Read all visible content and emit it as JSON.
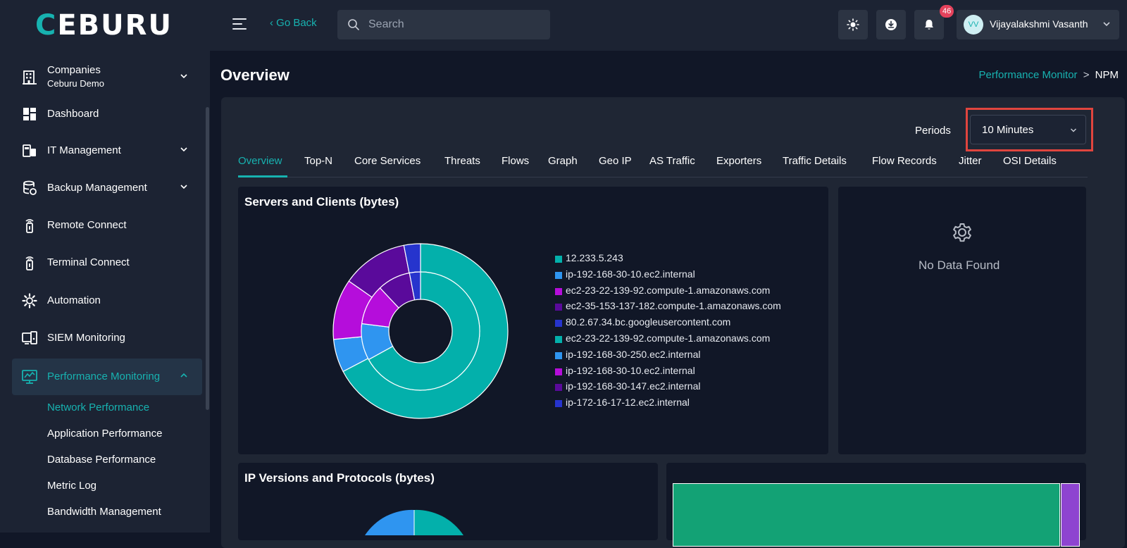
{
  "app": {
    "logo_first": "C",
    "logo_rest": "EBURU"
  },
  "topbar": {
    "go_back": "‹ Go Back",
    "search_placeholder": "Search",
    "notifications_count": "46",
    "user_initials": "VV",
    "user_name": "Vijayalakshmi Vasanth"
  },
  "sidebar": {
    "companies_label": "Companies",
    "companies_sub": "Ceburu Demo",
    "items": [
      {
        "label": "Dashboard"
      },
      {
        "label": "IT Management"
      },
      {
        "label": "Backup Management"
      },
      {
        "label": "Remote Connect"
      },
      {
        "label": "Terminal Connect"
      },
      {
        "label": "Automation"
      },
      {
        "label": "SIEM Monitoring"
      },
      {
        "label": "Performance Monitoring"
      }
    ],
    "sub_items": [
      {
        "label": "Network Performance"
      },
      {
        "label": "Application Performance"
      },
      {
        "label": "Database Performance"
      },
      {
        "label": "Metric Log"
      },
      {
        "label": "Bandwidth Management"
      }
    ]
  },
  "header": {
    "title": "Overview",
    "breadcrumb_link": "Performance Monitor",
    "breadcrumb_sep": ">",
    "breadcrumb_current": "NPM"
  },
  "filters": {
    "periods_label": "Periods",
    "period_value": "10 Minutes"
  },
  "tabs": [
    {
      "label": "Overview"
    },
    {
      "label": "Top-N"
    },
    {
      "label": "Core Services"
    },
    {
      "label": "Threats"
    },
    {
      "label": "Flows"
    },
    {
      "label": "Graph"
    },
    {
      "label": "Geo IP"
    },
    {
      "label": "AS Traffic"
    },
    {
      "label": "Exporters"
    },
    {
      "label": "Traffic Details"
    },
    {
      "label": "Flow Records"
    },
    {
      "label": "Jitter"
    },
    {
      "label": "OSI Details"
    }
  ],
  "cards": {
    "servers_clients_title": "Servers and Clients (bytes)",
    "no_data_text": "No Data Found",
    "ip_versions_title": "IP Versions and Protocols (bytes)"
  },
  "colors": {
    "accent": "#17b2b0",
    "teal": "#03b0ab",
    "blue": "#2f95f0",
    "magenta": "#b50ddb",
    "purple": "#5a0a9b",
    "indigo": "#2634cd",
    "treemap_green": "#13a275",
    "treemap_purple": "#8e44d0"
  },
  "chart_data": {
    "type": "pie",
    "title": "Servers and Clients (bytes)",
    "legend_position": "right",
    "rings": [
      {
        "name": "outer",
        "labels": [
          "12.233.5.243",
          "ip-192-168-30-10.ec2.internal",
          "ec2-23-22-139-92.compute-1.amazonaws.com",
          "ec2-35-153-137-182.compute-1.amazonaws.com",
          "80.2.67.34.bc.googleusercontent.com"
        ],
        "values": [
          66,
          6,
          11,
          12,
          3
        ],
        "colors": [
          "#03b0ab",
          "#2f95f0",
          "#b50ddb",
          "#5a0a9b",
          "#2634cd"
        ]
      },
      {
        "name": "inner",
        "labels": [
          "ec2-23-22-139-92.compute-1.amazonaws.com",
          "ip-192-168-30-250.ec2.internal",
          "ip-192-168-30-10.ec2.internal",
          "ip-192-168-30-147.ec2.internal",
          "ip-172-16-17-12.ec2.internal"
        ],
        "values": [
          67,
          10,
          11,
          9,
          3
        ],
        "colors": [
          "#03b0ab",
          "#2f95f0",
          "#b50ddb",
          "#5a0a9b",
          "#2634cd"
        ]
      }
    ],
    "legend": [
      {
        "label": "12.233.5.243",
        "color": "#03b0ab"
      },
      {
        "label": "ip-192-168-30-10.ec2.internal",
        "color": "#2f95f0"
      },
      {
        "label": "ec2-23-22-139-92.compute-1.amazonaws.com",
        "color": "#b50ddb"
      },
      {
        "label": "ec2-35-153-137-182.compute-1.amazonaws.com",
        "color": "#5a0a9b"
      },
      {
        "label": "80.2.67.34.bc.googleusercontent.com",
        "color": "#2634cd"
      },
      {
        "label": "ec2-23-22-139-92.compute-1.amazonaws.com",
        "color": "#03b0ab"
      },
      {
        "label": "ip-192-168-30-250.ec2.internal",
        "color": "#2f95f0"
      },
      {
        "label": "ip-192-168-30-10.ec2.internal",
        "color": "#b50ddb"
      },
      {
        "label": "ip-192-168-30-147.ec2.internal",
        "color": "#5a0a9b"
      },
      {
        "label": "ip-172-16-17-12.ec2.internal",
        "color": "#2634cd"
      }
    ]
  }
}
